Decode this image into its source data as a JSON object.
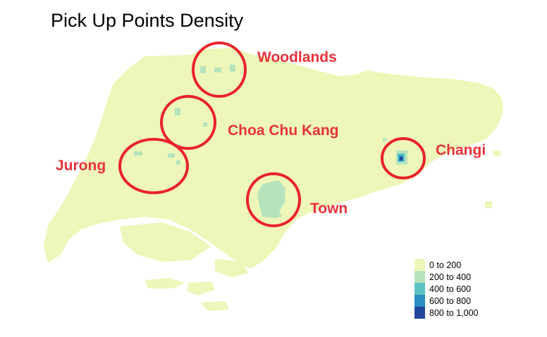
{
  "title": "Pick Up Points Density",
  "annotations": [
    {
      "id": "woodlands",
      "label": "Woodlands"
    },
    {
      "id": "choa-chu-kang",
      "label": "Choa Chu Kang"
    },
    {
      "id": "jurong",
      "label": "Jurong"
    },
    {
      "id": "town",
      "label": "Town"
    },
    {
      "id": "changi",
      "label": "Changi"
    }
  ],
  "legend": {
    "items": [
      {
        "label": "0 to 200",
        "color": "#eef6b9"
      },
      {
        "label": "200 to 400",
        "color": "#b5e4bc"
      },
      {
        "label": "400 to 600",
        "color": "#5bc4c4"
      },
      {
        "label": "600 to 800",
        "color": "#2a8ec2"
      },
      {
        "label": "800 to 1,000",
        "color": "#21479d"
      }
    ]
  },
  "colors": {
    "land": "#eef6b9",
    "circle": "#e8232b",
    "annotation_text": "#e8323a"
  }
}
